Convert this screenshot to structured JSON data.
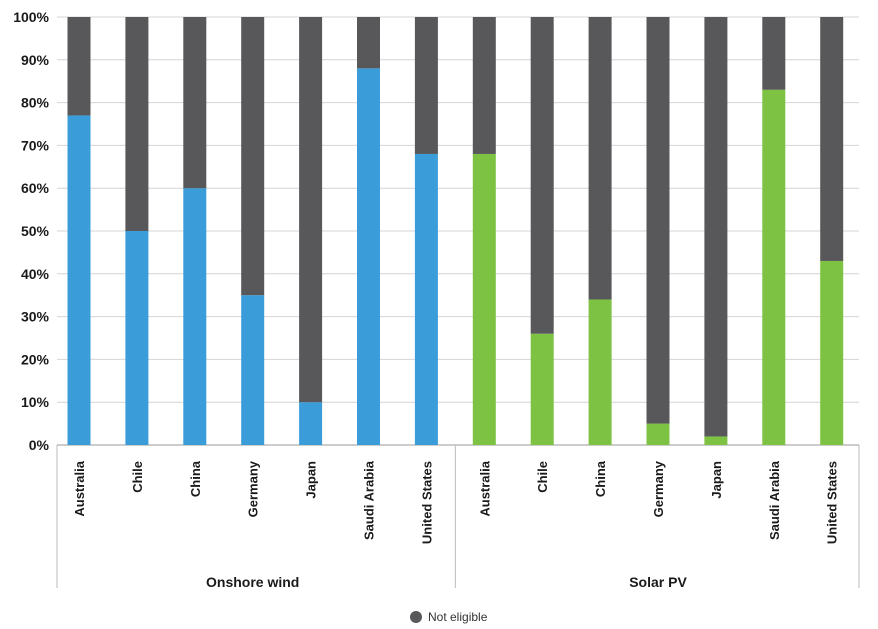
{
  "chart_data": {
    "type": "bar",
    "stacked": true,
    "y_tick_labels": [
      "0%",
      "10%",
      "20%",
      "30%",
      "40%",
      "50%",
      "60%",
      "70%",
      "80%",
      "90%",
      "100%"
    ],
    "ylim": [
      0,
      100
    ],
    "grid": true,
    "groups": [
      {
        "label": "Onshore wind",
        "categories": [
          "Australia",
          "Chile",
          "China",
          "Germany",
          "Japan",
          "Saudi Arabia",
          "United States"
        ],
        "eligible": [
          77,
          50,
          60,
          35,
          10,
          88,
          68
        ],
        "not_eligible": [
          23,
          50,
          40,
          65,
          90,
          12,
          32
        ],
        "color": "#3a9dda"
      },
      {
        "label": "Solar PV",
        "categories": [
          "Australia",
          "Chile",
          "China",
          "Germany",
          "Japan",
          "Saudi Arabia",
          "United States"
        ],
        "eligible": [
          68,
          26,
          34,
          5,
          2,
          83,
          43
        ],
        "not_eligible": [
          32,
          74,
          66,
          95,
          98,
          17,
          57
        ],
        "color": "#7dc242"
      }
    ],
    "not_eligible_color": "#58585a",
    "legend": {
      "label": "Not eligible",
      "placement": "bottom-center"
    }
  }
}
